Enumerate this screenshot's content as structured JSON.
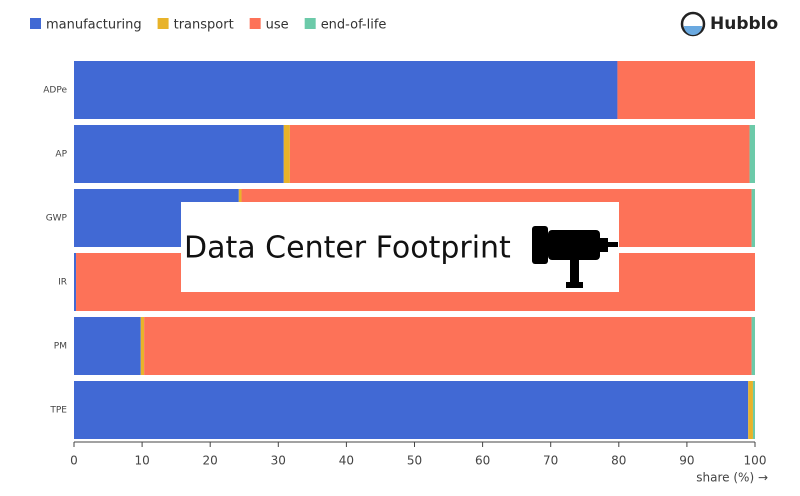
{
  "brand": "Hubblo",
  "overlay_title": "Data Center Footprint",
  "chart_data": {
    "type": "stacked-barh",
    "x_label": "share (%) →",
    "categories": [
      "ADPe",
      "AP",
      "GWP",
      "IR",
      "PM",
      "TPE"
    ],
    "series": [
      {
        "name": "manufacturing",
        "color": "#4169d4",
        "values": [
          79.8,
          30.8,
          24.2,
          0.3,
          9.8,
          99.0
        ]
      },
      {
        "name": "transport",
        "color": "#e8b32a",
        "values": [
          0,
          0.9,
          0.4,
          0,
          0.5,
          0.7
        ]
      },
      {
        "name": "use",
        "color": "#fd7258",
        "values": [
          20.2,
          67.5,
          74.9,
          99.7,
          89.2,
          0
        ]
      },
      {
        "name": "end-of-life",
        "color": "#6ccaa9",
        "values": [
          0,
          0.8,
          0.5,
          0,
          0.5,
          0.3
        ]
      }
    ],
    "xlim": [
      0,
      100
    ],
    "xticks": [
      0,
      10,
      20,
      30,
      40,
      50,
      60,
      70,
      80,
      90,
      100
    ],
    "legend": "top-left"
  }
}
